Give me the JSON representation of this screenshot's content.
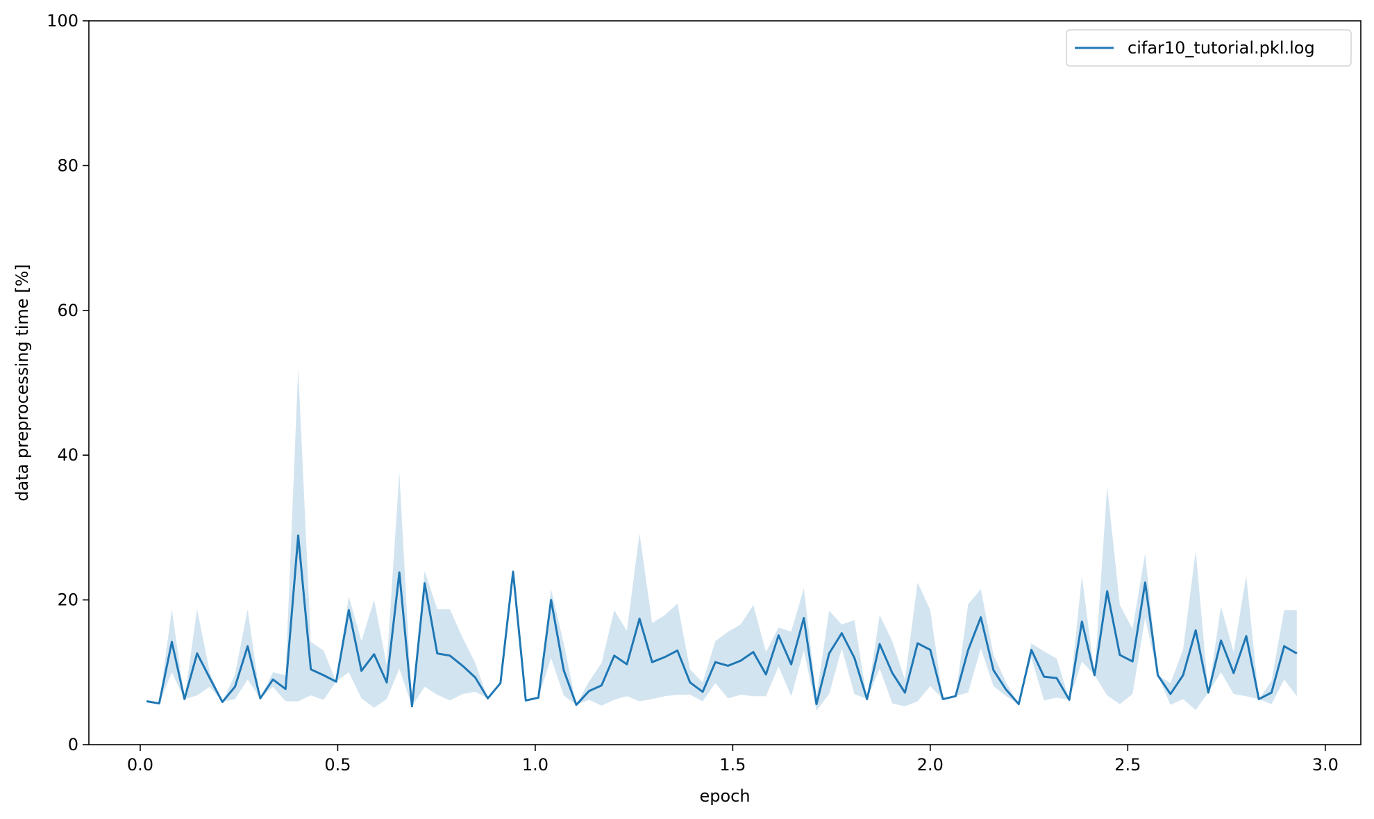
{
  "chart_data": {
    "type": "line",
    "title": "",
    "xlabel": "epoch",
    "ylabel": "data preprocessing time [%]",
    "xlim": [
      -0.13,
      3.09
    ],
    "ylim": [
      0,
      100
    ],
    "xticks": [
      0.0,
      0.5,
      1.0,
      1.5,
      2.0,
      2.5,
      3.0
    ],
    "xtick_labels": [
      "0.0",
      "0.5",
      "1.0",
      "1.5",
      "2.0",
      "2.5",
      "3.0"
    ],
    "yticks": [
      0,
      20,
      40,
      60,
      80,
      100
    ],
    "ytick_labels": [
      "0",
      "20",
      "40",
      "60",
      "80",
      "100"
    ],
    "grid": false,
    "legend": "top-right",
    "colors": {
      "line": "#1f77b4",
      "band": "#1f77b4"
    },
    "series": [
      {
        "name": "cifar10_tutorial.pkl.log",
        "x": [
          0.016,
          0.048,
          0.08,
          0.112,
          0.144,
          0.176,
          0.208,
          0.24,
          0.272,
          0.304,
          0.336,
          0.368,
          0.4,
          0.432,
          0.464,
          0.496,
          0.528,
          0.56,
          0.592,
          0.624,
          0.656,
          0.688,
          0.72,
          0.752,
          0.784,
          0.816,
          0.848,
          0.88,
          0.912,
          0.944,
          0.976,
          1.008,
          1.04,
          1.072,
          1.104,
          1.136,
          1.168,
          1.2,
          1.232,
          1.264,
          1.296,
          1.328,
          1.36,
          1.392,
          1.424,
          1.456,
          1.488,
          1.52,
          1.552,
          1.584,
          1.616,
          1.648,
          1.68,
          1.712,
          1.744,
          1.776,
          1.808,
          1.84,
          1.872,
          1.904,
          1.936,
          1.968,
          2.0,
          2.032,
          2.064,
          2.096,
          2.128,
          2.16,
          2.192,
          2.224,
          2.256,
          2.288,
          2.32,
          2.352,
          2.384,
          2.416,
          2.448,
          2.48,
          2.512,
          2.544,
          2.576,
          2.608,
          2.64,
          2.672,
          2.704,
          2.736,
          2.768,
          2.8,
          2.832,
          2.864,
          2.896,
          2.928
        ],
        "y": [
          6.0,
          5.7,
          14.2,
          6.3,
          12.6,
          9.2,
          5.9,
          8.0,
          13.6,
          6.4,
          9.0,
          7.7,
          28.9,
          10.4,
          9.6,
          8.7,
          18.6,
          10.2,
          12.5,
          8.6,
          23.8,
          5.3,
          22.3,
          12.6,
          12.3,
          10.9,
          9.3,
          6.4,
          8.5,
          23.9,
          6.1,
          6.5,
          20.0,
          10.3,
          5.5,
          7.4,
          8.2,
          12.3,
          11.1,
          17.4,
          11.4,
          12.1,
          13.0,
          8.6,
          7.3,
          11.4,
          10.9,
          11.6,
          12.8,
          9.7,
          15.1,
          11.1,
          17.5,
          5.6,
          12.6,
          15.4,
          12.0,
          6.3,
          13.9,
          9.9,
          7.2,
          14.0,
          13.1,
          6.3,
          6.7,
          13.1,
          17.6,
          10.3,
          7.6,
          5.6,
          13.1,
          9.4,
          9.2,
          6.2,
          17.0,
          9.6,
          21.2,
          12.4,
          11.5,
          22.4,
          9.6,
          7.0,
          9.6,
          15.8,
          7.2,
          14.4,
          9.9,
          15.0,
          6.3,
          7.2,
          13.6,
          12.6
        ],
        "lower": [
          6.0,
          5.7,
          10.0,
          6.3,
          6.8,
          8.0,
          5.9,
          6.3,
          9.0,
          6.4,
          8.0,
          6.0,
          6.0,
          6.8,
          6.2,
          8.7,
          10.0,
          6.4,
          5.1,
          6.3,
          10.5,
          5.3,
          8.0,
          6.9,
          6.1,
          7.0,
          7.3,
          6.4,
          8.5,
          23.9,
          6.1,
          6.5,
          12.0,
          6.8,
          5.5,
          6.2,
          5.4,
          6.2,
          6.7,
          6.0,
          6.3,
          6.7,
          6.9,
          6.9,
          6.0,
          8.5,
          6.4,
          6.9,
          6.7,
          6.7,
          10.8,
          6.7,
          13.0,
          4.7,
          7.0,
          13.3,
          7.0,
          6.3,
          10.5,
          5.7,
          5.3,
          6.0,
          8.1,
          6.3,
          6.7,
          7.2,
          13.3,
          8.1,
          6.7,
          5.6,
          12.0,
          6.1,
          6.5,
          6.2,
          11.5,
          9.6,
          6.8,
          5.6,
          7.0,
          17.5,
          9.6,
          5.5,
          6.3,
          4.8,
          7.2,
          10.0,
          7.0,
          6.7,
          6.3,
          5.6,
          9.0,
          6.7
        ],
        "upper": [
          6.0,
          5.7,
          18.7,
          6.3,
          18.7,
          10.0,
          5.9,
          9.7,
          18.7,
          6.4,
          10.0,
          9.6,
          52.0,
          14.2,
          13.0,
          8.7,
          20.5,
          14.3,
          20.0,
          11.0,
          37.6,
          5.3,
          24.0,
          18.7,
          18.7,
          14.8,
          11.3,
          6.4,
          8.5,
          23.9,
          6.1,
          6.5,
          21.5,
          14.0,
          5.5,
          8.7,
          11.3,
          18.6,
          15.7,
          29.2,
          16.8,
          17.9,
          19.5,
          10.4,
          8.6,
          14.3,
          15.6,
          16.6,
          19.3,
          12.8,
          16.2,
          15.6,
          21.6,
          6.6,
          18.5,
          16.6,
          17.2,
          6.3,
          17.9,
          14.3,
          9.0,
          22.4,
          18.6,
          6.3,
          6.7,
          19.4,
          21.5,
          12.4,
          8.6,
          5.6,
          14.0,
          12.9,
          11.9,
          6.2,
          23.3,
          9.6,
          35.7,
          19.3,
          16.0,
          26.4,
          9.6,
          8.5,
          13.1,
          26.8,
          7.2,
          19.1,
          12.8,
          23.3,
          6.3,
          8.8,
          18.6,
          18.6
        ]
      }
    ]
  }
}
